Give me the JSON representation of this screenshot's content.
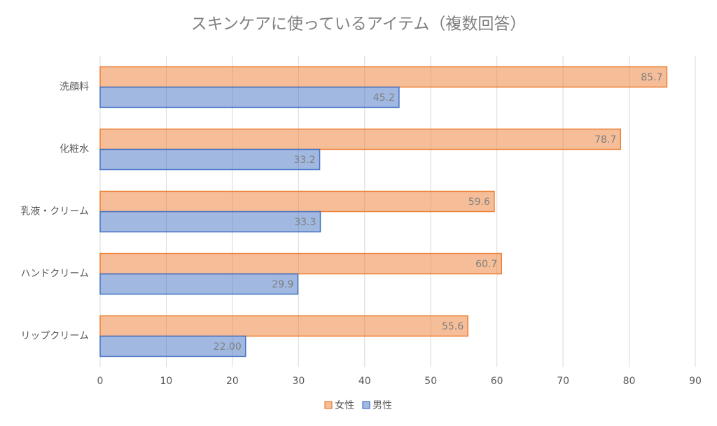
{
  "chart_data": {
    "type": "hbar",
    "title": "スキンケアに使っているアイテム（複数回答）",
    "categories": [
      "洗顔料",
      "化粧水",
      "乳液・クリーム",
      "ハンドクリーム",
      "リップクリーム"
    ],
    "series": [
      {
        "name": "女性",
        "color": "#ed7d31",
        "values": [
          85.7,
          78.7,
          59.6,
          60.7,
          55.6
        ]
      },
      {
        "name": "男性",
        "color": "#4472c4",
        "values": [
          45.2,
          33.2,
          33.3,
          29.9,
          22
        ],
        "value_labels": [
          "45.2",
          "33.2",
          "33.3",
          "29.9",
          "22.00"
        ]
      }
    ],
    "xlim": [
      0,
      90
    ],
    "xticks": [
      0,
      10,
      20,
      30,
      40,
      50,
      60,
      70,
      80,
      90
    ],
    "grid": true,
    "legend": "bottom"
  }
}
